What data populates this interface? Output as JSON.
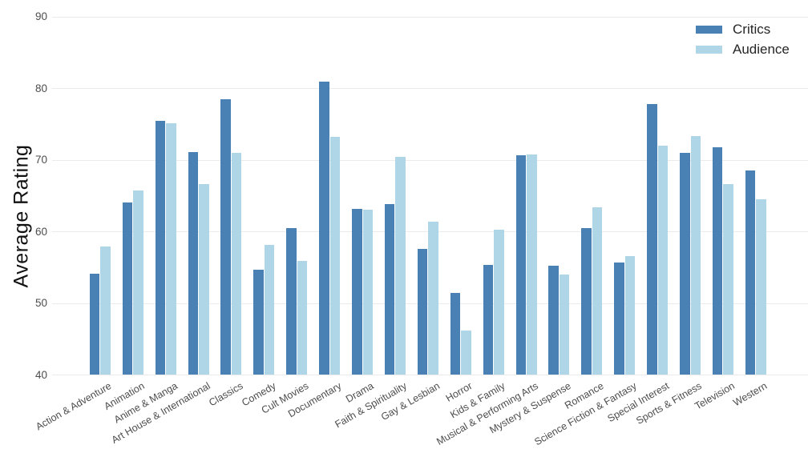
{
  "chart_data": {
    "type": "bar",
    "title": "",
    "xlabel": "",
    "ylabel": "Average Rating",
    "ylim": [
      40,
      90
    ],
    "yticks": [
      40,
      50,
      60,
      70,
      80,
      90
    ],
    "grid": true,
    "legend_position": "top-right",
    "categories": [
      "Action & Adventure",
      "Animation",
      "Anime & Manga",
      "Art House & International",
      "Classics",
      "Comedy",
      "Cult Movies",
      "Documentary",
      "Drama",
      "Faith & Spirituality",
      "Gay & Lesbian",
      "Horror",
      "Kids & Family",
      "Musical & Performing Arts",
      "Mystery & Suspense",
      "Romance",
      "Science Fiction & Fantasy",
      "Special Interest",
      "Sports & Fitness",
      "Television",
      "Western"
    ],
    "series": [
      {
        "name": "Critics",
        "color": "#4a81b5",
        "values": [
          54.1,
          64.1,
          75.5,
          71.1,
          78.5,
          54.7,
          60.5,
          80.9,
          63.2,
          63.9,
          57.6,
          51.5,
          55.4,
          70.7,
          55.3,
          60.5,
          55.7,
          77.8,
          71.0,
          71.8,
          68.5
        ]
      },
      {
        "name": "Audience",
        "color": "#afd6e7",
        "values": [
          57.9,
          65.8,
          75.1,
          66.6,
          71.0,
          58.2,
          55.9,
          73.2,
          63.1,
          70.4,
          61.4,
          46.2,
          60.3,
          70.8,
          54.0,
          63.4,
          56.6,
          72.0,
          73.3,
          66.6,
          64.5
        ]
      }
    ]
  },
  "colors": {
    "background": "#ffffff",
    "gridline": "#ebebeb",
    "ytick_text": "#4d4d4d",
    "xtick_text": "#4d4d4d",
    "axis_title_text": "#111111",
    "legend_text": "#262626"
  }
}
